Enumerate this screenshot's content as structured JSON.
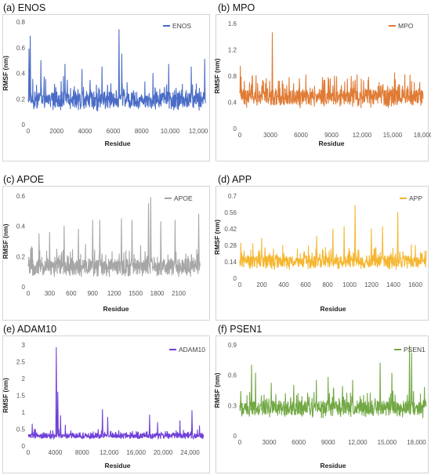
{
  "chart_data": [
    {
      "panel": "(a) ENOS",
      "type": "line",
      "xlabel": "Residue",
      "ylabel": "RMSF (nm)",
      "color": "#4a6cc7",
      "series": [
        {
          "name": "ENOS",
          "x_range": [
            0,
            12500
          ],
          "n_points": 700,
          "baseline": 0.19,
          "noise": 0.06,
          "peaks": [
            [
              150,
              0.69
            ],
            [
              60,
              0.59
            ],
            [
              900,
              0.5
            ],
            [
              2600,
              0.47
            ],
            [
              3800,
              0.43
            ],
            [
              5200,
              0.45
            ],
            [
              6400,
              0.74
            ],
            [
              6600,
              0.55
            ],
            [
              8800,
              0.4
            ],
            [
              9900,
              0.47
            ],
            [
              11500,
              0.45
            ],
            [
              12450,
              0.51
            ]
          ]
        }
      ],
      "xticks": [
        "0",
        "2000",
        "4000",
        "6000",
        "8000",
        "10,000",
        "12,000"
      ],
      "xtick_values": [
        0,
        2000,
        4000,
        6000,
        8000,
        10000,
        12000
      ],
      "xlim": [
        0,
        12600
      ],
      "yticks": [
        "0",
        "0.2",
        "0.4",
        "0.6",
        "0.8"
      ],
      "ytick_values": [
        0,
        0.2,
        0.4,
        0.6,
        0.8
      ],
      "ylim": [
        0,
        0.8
      ],
      "legend": "top-right"
    },
    {
      "panel": "(b) MPO",
      "type": "line",
      "xlabel": "Residue",
      "ylabel": "RMSF (nm)",
      "color": "#e07b35",
      "series": [
        {
          "name": "MPO",
          "x_range": [
            0,
            18000
          ],
          "n_points": 700,
          "baseline": 0.48,
          "noise": 0.12,
          "peaks": [
            [
              3200,
              1.46
            ],
            [
              50,
              0.95
            ],
            [
              1200,
              0.8
            ],
            [
              6500,
              0.82
            ],
            [
              9300,
              0.8
            ],
            [
              11500,
              0.82
            ],
            [
              15200,
              0.85
            ],
            [
              16200,
              0.82
            ],
            [
              17700,
              0.55
            ]
          ]
        }
      ],
      "xticks": [
        "0",
        "3000",
        "6000",
        "9000",
        "12,000",
        "15,000",
        "18,000"
      ],
      "xtick_values": [
        0,
        3000,
        6000,
        9000,
        12000,
        15000,
        18000
      ],
      "xlim": [
        0,
        18000
      ],
      "yticks": [
        "0",
        "0.4",
        "0.8",
        "1.2",
        "1.6"
      ],
      "ytick_values": [
        0,
        0.4,
        0.8,
        1.2,
        1.6
      ],
      "ylim": [
        0,
        1.6
      ],
      "legend": "top-right"
    },
    {
      "panel": "(c) APOE",
      "type": "line",
      "xlabel": "Residue",
      "ylabel": "RMSF (nm)",
      "color": "#a6a6a6",
      "series": [
        {
          "name": "APOE",
          "x_range": [
            0,
            2400
          ],
          "n_points": 700,
          "baseline": 0.13,
          "noise": 0.05,
          "peaks": [
            [
              1710,
              0.59
            ],
            [
              1680,
              0.55
            ],
            [
              900,
              0.44
            ],
            [
              1000,
              0.44
            ],
            [
              1300,
              0.45
            ],
            [
              1450,
              0.44
            ],
            [
              1850,
              0.43
            ],
            [
              2050,
              0.44
            ],
            [
              2380,
              0.48
            ],
            [
              150,
              0.35
            ],
            [
              300,
              0.36
            ],
            [
              500,
              0.4
            ],
            [
              700,
              0.38
            ]
          ]
        }
      ],
      "xticks": [
        "0",
        "300",
        "600",
        "900",
        "1200",
        "1500",
        "1800",
        "2100"
      ],
      "xtick_values": [
        0,
        300,
        600,
        900,
        1200,
        1500,
        1800,
        2100
      ],
      "xlim": [
        0,
        2450
      ],
      "yticks": [
        "0",
        "0.2",
        "0.4",
        "0.6"
      ],
      "ytick_values": [
        0,
        0.2,
        0.4,
        0.6
      ],
      "ylim": [
        0,
        0.6
      ],
      "legend": "top-right"
    },
    {
      "panel": "(d) APP",
      "type": "line",
      "xlabel": "Residue",
      "ylabel": "RMSF (nm)",
      "color": "#f5b731",
      "series": [
        {
          "name": "APP",
          "x_range": [
            0,
            1700
          ],
          "n_points": 700,
          "baseline": 0.14,
          "noise": 0.05,
          "peaks": [
            [
              1050,
              0.62
            ],
            [
              1440,
              0.56
            ],
            [
              10,
              0.3
            ],
            [
              200,
              0.34
            ],
            [
              700,
              0.36
            ],
            [
              850,
              0.42
            ],
            [
              950,
              0.44
            ],
            [
              1200,
              0.42
            ],
            [
              1300,
              0.44
            ],
            [
              1600,
              0.28
            ]
          ]
        }
      ],
      "xticks": [
        "0",
        "200",
        "400",
        "600",
        "800",
        "1000",
        "1200",
        "1400",
        "1600"
      ],
      "xtick_values": [
        0,
        200,
        400,
        600,
        800,
        1000,
        1200,
        1400,
        1600
      ],
      "xlim": [
        0,
        1700
      ],
      "yticks": [
        "0",
        "0.14",
        "0.28",
        "0.42",
        "0.56",
        "0.7"
      ],
      "ytick_values": [
        0,
        0.14,
        0.28,
        0.42,
        0.56,
        0.7
      ],
      "ylim": [
        0,
        0.7
      ],
      "legend": "top-right"
    },
    {
      "panel": "(e) ADAM10",
      "type": "line",
      "xlabel": "Residue",
      "ylabel": "RMSF (nm)",
      "color": "#7040d8",
      "series": [
        {
          "name": "ADAM10",
          "x_range": [
            0,
            26000
          ],
          "n_points": 700,
          "baseline": 0.3,
          "noise": 0.07,
          "peaks": [
            [
              4150,
              2.92
            ],
            [
              4400,
              1.6
            ],
            [
              4800,
              0.9
            ],
            [
              5500,
              0.62
            ],
            [
              600,
              0.65
            ],
            [
              11000,
              1.08
            ],
            [
              11800,
              0.85
            ],
            [
              18000,
              0.92
            ],
            [
              19200,
              0.7
            ],
            [
              22500,
              0.75
            ],
            [
              24300,
              1.05
            ],
            [
              25400,
              0.6
            ]
          ]
        }
      ],
      "xticks": [
        "0",
        "4000",
        "8000",
        "12,000",
        "16,000",
        "20,000",
        "24,000"
      ],
      "xtick_values": [
        0,
        4000,
        8000,
        12000,
        16000,
        20000,
        24000
      ],
      "xlim": [
        0,
        26500
      ],
      "yticks": [
        "0",
        "0.5",
        "1",
        "1.5",
        "2",
        "2.5",
        "3"
      ],
      "ytick_values": [
        0,
        0.5,
        1,
        1.5,
        2,
        2.5,
        3
      ],
      "ylim": [
        0,
        3
      ],
      "legend": "top-right"
    },
    {
      "panel": "(f) PSEN1",
      "type": "line",
      "xlabel": "Residue",
      "ylabel": "RMSF (nm)",
      "color": "#72a844",
      "series": [
        {
          "name": "PSEN1",
          "x_range": [
            0,
            19000
          ],
          "n_points": 700,
          "baseline": 0.27,
          "noise": 0.07,
          "peaks": [
            [
              17300,
              0.89
            ],
            [
              17500,
              0.82
            ],
            [
              1200,
              0.7
            ],
            [
              1600,
              0.62
            ],
            [
              14300,
              0.72
            ],
            [
              9000,
              0.58
            ],
            [
              7800,
              0.55
            ],
            [
              11500,
              0.55
            ],
            [
              15500,
              0.62
            ],
            [
              18800,
              0.48
            ],
            [
              3200,
              0.52
            ],
            [
              5500,
              0.5
            ]
          ]
        }
      ],
      "xticks": [
        "0",
        "3000",
        "6000",
        "9000",
        "12,000",
        "15,000",
        "18,000"
      ],
      "xtick_values": [
        0,
        3000,
        6000,
        9000,
        12000,
        15000,
        18000
      ],
      "xlim": [
        0,
        19000
      ],
      "yticks": [
        "0",
        "0.3",
        "0.6",
        "0.9"
      ],
      "ytick_values": [
        0,
        0.3,
        0.6,
        0.9
      ],
      "ylim": [
        0,
        0.9
      ],
      "legend": "top-right"
    }
  ]
}
